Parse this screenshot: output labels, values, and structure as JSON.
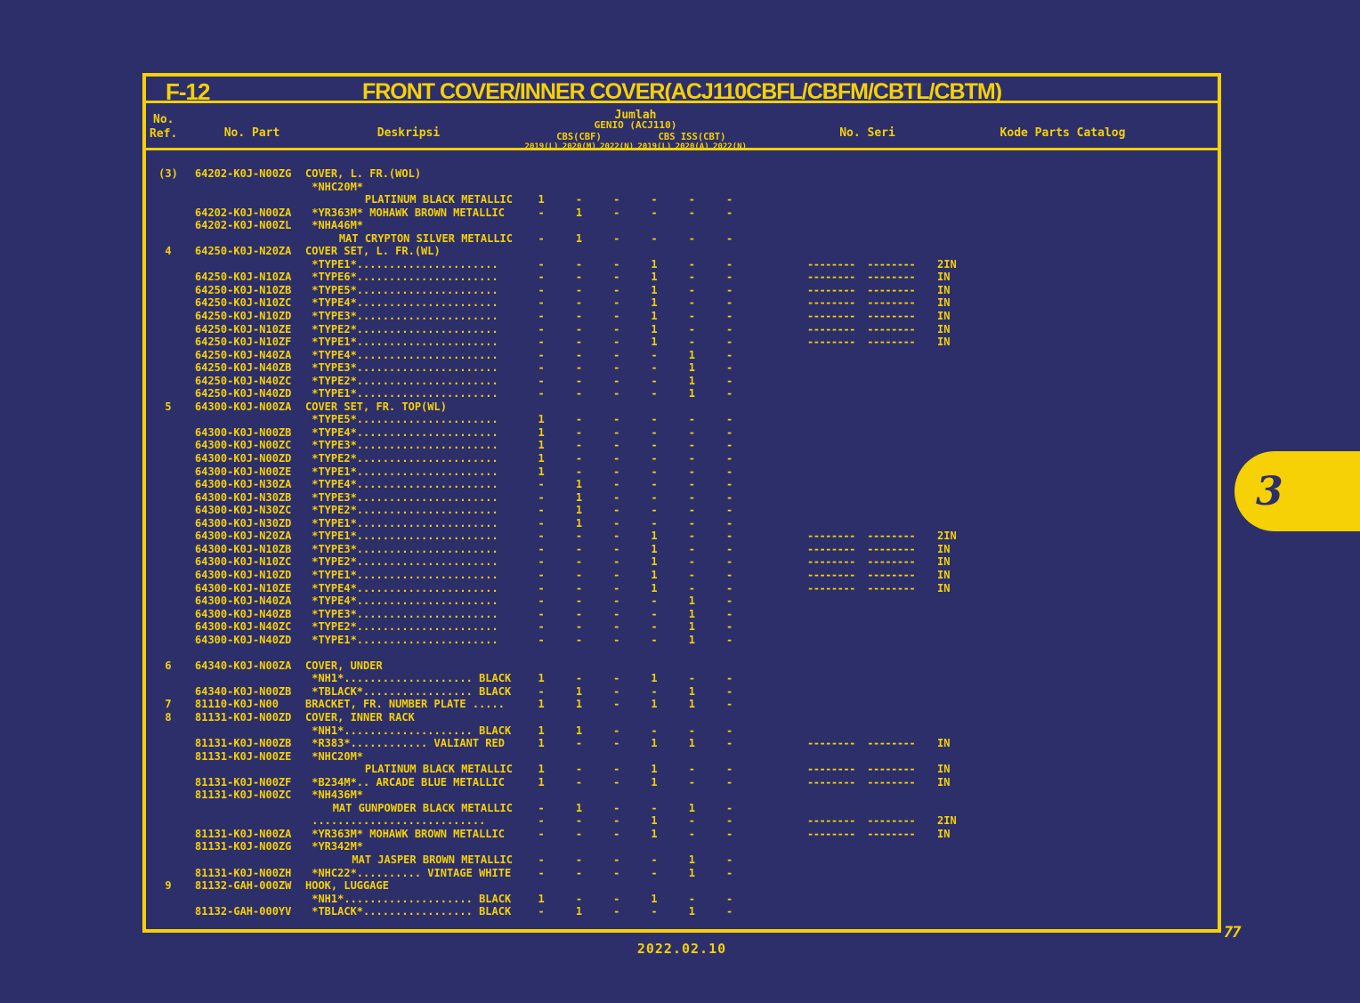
{
  "page": {
    "title_code": "F-12",
    "title": "FRONT COVER/INNER COVER(ACJ110CBFL/CBFM/CBTL/CBTM)",
    "footer_date": "2022.02.10",
    "page_number": "77",
    "side_tab": "3"
  },
  "colors": {
    "background": "#2D2F6B",
    "accent_yellow": "#F5D106"
  },
  "header": {
    "ref_line1": "No.",
    "ref_line2": "Ref.",
    "part": "No. Part",
    "desc": "Deskripsi",
    "qty_group": "Jumlah",
    "qty_model": "GENIO (ACJ110)",
    "qty_sub1": "CBS(CBF)",
    "qty_sub2": "CBS ISS(CBT)",
    "years": [
      "2019(L)",
      "2020(M)",
      "2022(N)",
      "2019(L)",
      "2020(A)",
      "2022(N)"
    ],
    "seri": "No. Seri",
    "code": "Kode Parts Catalog"
  },
  "serial_dashes": "--------  --------",
  "rows": [
    {
      "ref": "(3)",
      "part": "64202-K0J-N00ZG",
      "desc": "COVER, L. FR.(WOL)",
      "right": false,
      "q": [
        "",
        "",
        "",
        "",
        "",
        ""
      ],
      "seri": "",
      "code": ""
    },
    {
      "ref": "",
      "part": "",
      "desc": " *NHC20M*",
      "right": false,
      "q": [
        "",
        "",
        "",
        "",
        "",
        ""
      ],
      "seri": "",
      "code": ""
    },
    {
      "ref": "",
      "part": "",
      "desc": "PLATINUM BLACK METALLIC",
      "right": true,
      "q": [
        "1",
        "-",
        "-",
        "-",
        "-",
        "-"
      ],
      "seri": "",
      "code": ""
    },
    {
      "ref": "",
      "part": "64202-K0J-N00ZA",
      "desc": " *YR363M* MOHAWK BROWN METALLIC",
      "right": false,
      "q": [
        "-",
        "1",
        "-",
        "-",
        "-",
        "-"
      ],
      "seri": "",
      "code": ""
    },
    {
      "ref": "",
      "part": "64202-K0J-N00ZL",
      "desc": " *NHA46M*",
      "right": false,
      "q": [
        "",
        "",
        "",
        "",
        "",
        ""
      ],
      "seri": "",
      "code": ""
    },
    {
      "ref": "",
      "part": "",
      "desc": "MAT CRYPTON SILVER METALLIC",
      "right": true,
      "q": [
        "-",
        "1",
        "-",
        "-",
        "-",
        "-"
      ],
      "seri": "",
      "code": ""
    },
    {
      "ref": "4",
      "part": "64250-K0J-N20ZA",
      "desc": "COVER SET, L. FR.(WL)",
      "right": false,
      "q": [
        "",
        "",
        "",
        "",
        "",
        ""
      ],
      "seri": "",
      "code": ""
    },
    {
      "ref": "",
      "part": "",
      "desc": " *TYPE1*......................",
      "right": false,
      "q": [
        "-",
        "-",
        "-",
        "1",
        "-",
        "-"
      ],
      "seri": "--------  --------",
      "code": "2IN"
    },
    {
      "ref": "",
      "part": "64250-K0J-N10ZA",
      "desc": " *TYPE6*......................",
      "right": false,
      "q": [
        "-",
        "-",
        "-",
        "1",
        "-",
        "-"
      ],
      "seri": "--------  --------",
      "code": "IN"
    },
    {
      "ref": "",
      "part": "64250-K0J-N10ZB",
      "desc": " *TYPE5*......................",
      "right": false,
      "q": [
        "-",
        "-",
        "-",
        "1",
        "-",
        "-"
      ],
      "seri": "--------  --------",
      "code": "IN"
    },
    {
      "ref": "",
      "part": "64250-K0J-N10ZC",
      "desc": " *TYPE4*......................",
      "right": false,
      "q": [
        "-",
        "-",
        "-",
        "1",
        "-",
        "-"
      ],
      "seri": "--------  --------",
      "code": "IN"
    },
    {
      "ref": "",
      "part": "64250-K0J-N10ZD",
      "desc": " *TYPE3*......................",
      "right": false,
      "q": [
        "-",
        "-",
        "-",
        "1",
        "-",
        "-"
      ],
      "seri": "--------  --------",
      "code": "IN"
    },
    {
      "ref": "",
      "part": "64250-K0J-N10ZE",
      "desc": " *TYPE2*......................",
      "right": false,
      "q": [
        "-",
        "-",
        "-",
        "1",
        "-",
        "-"
      ],
      "seri": "--------  --------",
      "code": "IN"
    },
    {
      "ref": "",
      "part": "64250-K0J-N10ZF",
      "desc": " *TYPE1*......................",
      "right": false,
      "q": [
        "-",
        "-",
        "-",
        "1",
        "-",
        "-"
      ],
      "seri": "--------  --------",
      "code": "IN"
    },
    {
      "ref": "",
      "part": "64250-K0J-N40ZA",
      "desc": " *TYPE4*......................",
      "right": false,
      "q": [
        "-",
        "-",
        "-",
        "-",
        "1",
        "-"
      ],
      "seri": "",
      "code": ""
    },
    {
      "ref": "",
      "part": "64250-K0J-N40ZB",
      "desc": " *TYPE3*......................",
      "right": false,
      "q": [
        "-",
        "-",
        "-",
        "-",
        "1",
        "-"
      ],
      "seri": "",
      "code": ""
    },
    {
      "ref": "",
      "part": "64250-K0J-N40ZC",
      "desc": " *TYPE2*......................",
      "right": false,
      "q": [
        "-",
        "-",
        "-",
        "-",
        "1",
        "-"
      ],
      "seri": "",
      "code": ""
    },
    {
      "ref": "",
      "part": "64250-K0J-N40ZD",
      "desc": " *TYPE1*......................",
      "right": false,
      "q": [
        "-",
        "-",
        "-",
        "-",
        "1",
        "-"
      ],
      "seri": "",
      "code": ""
    },
    {
      "ref": "5",
      "part": "64300-K0J-N00ZA",
      "desc": "COVER SET, FR. TOP(WL)",
      "right": false,
      "q": [
        "",
        "",
        "",
        "",
        "",
        ""
      ],
      "seri": "",
      "code": ""
    },
    {
      "ref": "",
      "part": "",
      "desc": " *TYPE5*......................",
      "right": false,
      "q": [
        "1",
        "-",
        "-",
        "-",
        "-",
        "-"
      ],
      "seri": "",
      "code": ""
    },
    {
      "ref": "",
      "part": "64300-K0J-N00ZB",
      "desc": " *TYPE4*......................",
      "right": false,
      "q": [
        "1",
        "-",
        "-",
        "-",
        "-",
        "-"
      ],
      "seri": "",
      "code": ""
    },
    {
      "ref": "",
      "part": "64300-K0J-N00ZC",
      "desc": " *TYPE3*......................",
      "right": false,
      "q": [
        "1",
        "-",
        "-",
        "-",
        "-",
        "-"
      ],
      "seri": "",
      "code": ""
    },
    {
      "ref": "",
      "part": "64300-K0J-N00ZD",
      "desc": " *TYPE2*......................",
      "right": false,
      "q": [
        "1",
        "-",
        "-",
        "-",
        "-",
        "-"
      ],
      "seri": "",
      "code": ""
    },
    {
      "ref": "",
      "part": "64300-K0J-N00ZE",
      "desc": " *TYPE1*......................",
      "right": false,
      "q": [
        "1",
        "-",
        "-",
        "-",
        "-",
        "-"
      ],
      "seri": "",
      "code": ""
    },
    {
      "ref": "",
      "part": "64300-K0J-N30ZA",
      "desc": " *TYPE4*......................",
      "right": false,
      "q": [
        "-",
        "1",
        "-",
        "-",
        "-",
        "-"
      ],
      "seri": "",
      "code": ""
    },
    {
      "ref": "",
      "part": "64300-K0J-N30ZB",
      "desc": " *TYPE3*......................",
      "right": false,
      "q": [
        "-",
        "1",
        "-",
        "-",
        "-",
        "-"
      ],
      "seri": "",
      "code": ""
    },
    {
      "ref": "",
      "part": "64300-K0J-N30ZC",
      "desc": " *TYPE2*......................",
      "right": false,
      "q": [
        "-",
        "1",
        "-",
        "-",
        "-",
        "-"
      ],
      "seri": "",
      "code": ""
    },
    {
      "ref": "",
      "part": "64300-K0J-N30ZD",
      "desc": " *TYPE1*......................",
      "right": false,
      "q": [
        "-",
        "1",
        "-",
        "-",
        "-",
        "-"
      ],
      "seri": "",
      "code": ""
    },
    {
      "ref": "",
      "part": "64300-K0J-N20ZA",
      "desc": " *TYPE1*......................",
      "right": false,
      "q": [
        "-",
        "-",
        "-",
        "1",
        "-",
        "-"
      ],
      "seri": "--------  --------",
      "code": "2IN"
    },
    {
      "ref": "",
      "part": "64300-K0J-N10ZB",
      "desc": " *TYPE3*......................",
      "right": false,
      "q": [
        "-",
        "-",
        "-",
        "1",
        "-",
        "-"
      ],
      "seri": "--------  --------",
      "code": "IN"
    },
    {
      "ref": "",
      "part": "64300-K0J-N10ZC",
      "desc": " *TYPE2*......................",
      "right": false,
      "q": [
        "-",
        "-",
        "-",
        "1",
        "-",
        "-"
      ],
      "seri": "--------  --------",
      "code": "IN"
    },
    {
      "ref": "",
      "part": "64300-K0J-N10ZD",
      "desc": " *TYPE1*......................",
      "right": false,
      "q": [
        "-",
        "-",
        "-",
        "1",
        "-",
        "-"
      ],
      "seri": "--------  --------",
      "code": "IN"
    },
    {
      "ref": "",
      "part": "64300-K0J-N10ZE",
      "desc": " *TYPE4*......................",
      "right": false,
      "q": [
        "-",
        "-",
        "-",
        "1",
        "-",
        "-"
      ],
      "seri": "--------  --------",
      "code": "IN"
    },
    {
      "ref": "",
      "part": "64300-K0J-N40ZA",
      "desc": " *TYPE4*......................",
      "right": false,
      "q": [
        "-",
        "-",
        "-",
        "-",
        "1",
        "-"
      ],
      "seri": "",
      "code": ""
    },
    {
      "ref": "",
      "part": "64300-K0J-N40ZB",
      "desc": " *TYPE3*......................",
      "right": false,
      "q": [
        "-",
        "-",
        "-",
        "-",
        "1",
        "-"
      ],
      "seri": "",
      "code": ""
    },
    {
      "ref": "",
      "part": "64300-K0J-N40ZC",
      "desc": " *TYPE2*......................",
      "right": false,
      "q": [
        "-",
        "-",
        "-",
        "-",
        "1",
        "-"
      ],
      "seri": "",
      "code": ""
    },
    {
      "ref": "",
      "part": "64300-K0J-N40ZD",
      "desc": " *TYPE1*......................",
      "right": false,
      "q": [
        "-",
        "-",
        "-",
        "-",
        "1",
        "-"
      ],
      "seri": "",
      "code": ""
    },
    {
      "ref": "",
      "part": "",
      "desc": "",
      "right": false,
      "q": [
        "",
        "",
        "",
        "",
        "",
        ""
      ],
      "seri": "",
      "code": ""
    },
    {
      "ref": "6",
      "part": "64340-K0J-N00ZA",
      "desc": "COVER, UNDER",
      "right": false,
      "q": [
        "",
        "",
        "",
        "",
        "",
        ""
      ],
      "seri": "",
      "code": ""
    },
    {
      "ref": "",
      "part": "",
      "desc": " *NH1*.................... BLACK",
      "right": false,
      "q": [
        "1",
        "-",
        "-",
        "1",
        "-",
        "-"
      ],
      "seri": "",
      "code": ""
    },
    {
      "ref": "",
      "part": "64340-K0J-N00ZB",
      "desc": " *TBLACK*................. BLACK",
      "right": false,
      "q": [
        "-",
        "1",
        "-",
        "-",
        "1",
        "-"
      ],
      "seri": "",
      "code": ""
    },
    {
      "ref": "7",
      "part": "81110-K0J-N00",
      "desc": "BRACKET, FR. NUMBER PLATE .....",
      "right": false,
      "q": [
        "1",
        "1",
        "-",
        "1",
        "1",
        "-"
      ],
      "seri": "",
      "code": ""
    },
    {
      "ref": "8",
      "part": "81131-K0J-N00ZD",
      "desc": "COVER, INNER RACK",
      "right": false,
      "q": [
        "",
        "",
        "",
        "",
        "",
        ""
      ],
      "seri": "",
      "code": ""
    },
    {
      "ref": "",
      "part": "",
      "desc": " *NH1*.................... BLACK",
      "right": false,
      "q": [
        "1",
        "1",
        "-",
        "-",
        "-",
        "-"
      ],
      "seri": "",
      "code": ""
    },
    {
      "ref": "",
      "part": "81131-K0J-N00ZB",
      "desc": " *R383*............ VALIANT RED",
      "right": false,
      "q": [
        "1",
        "-",
        "-",
        "1",
        "1",
        "-"
      ],
      "seri": "--------  --------",
      "code": "IN"
    },
    {
      "ref": "",
      "part": "81131-K0J-N00ZE",
      "desc": " *NHC20M*",
      "right": false,
      "q": [
        "",
        "",
        "",
        "",
        "",
        ""
      ],
      "seri": "",
      "code": ""
    },
    {
      "ref": "",
      "part": "",
      "desc": "PLATINUM BLACK METALLIC",
      "right": true,
      "q": [
        "1",
        "-",
        "-",
        "1",
        "-",
        "-"
      ],
      "seri": "--------  --------",
      "code": "IN"
    },
    {
      "ref": "",
      "part": "81131-K0J-N00ZF",
      "desc": " *B234M*.. ARCADE BLUE METALLIC",
      "right": false,
      "q": [
        "1",
        "-",
        "-",
        "1",
        "-",
        "-"
      ],
      "seri": "--------  --------",
      "code": "IN"
    },
    {
      "ref": "",
      "part": "81131-K0J-N00ZC",
      "desc": " *NH436M*",
      "right": false,
      "q": [
        "",
        "",
        "",
        "",
        "",
        ""
      ],
      "seri": "",
      "code": ""
    },
    {
      "ref": "",
      "part": "",
      "desc": "MAT GUNPOWDER BLACK METALLIC",
      "right": true,
      "q": [
        "-",
        "1",
        "-",
        "-",
        "1",
        "-"
      ],
      "seri": "",
      "code": ""
    },
    {
      "ref": "",
      "part": "",
      "desc": " ...........................",
      "right": false,
      "q": [
        "-",
        "-",
        "-",
        "1",
        "-",
        "-"
      ],
      "seri": "--------  --------",
      "code": "2IN"
    },
    {
      "ref": "",
      "part": "81131-K0J-N00ZA",
      "desc": " *YR363M* MOHAWK BROWN METALLIC",
      "right": false,
      "q": [
        "-",
        "-",
        "-",
        "1",
        "-",
        "-"
      ],
      "seri": "--------  --------",
      "code": "IN"
    },
    {
      "ref": "",
      "part": "81131-K0J-N00ZG",
      "desc": " *YR342M*",
      "right": false,
      "q": [
        "",
        "",
        "",
        "",
        "",
        ""
      ],
      "seri": "",
      "code": ""
    },
    {
      "ref": "",
      "part": "",
      "desc": "MAT JASPER BROWN METALLIC",
      "right": true,
      "q": [
        "-",
        "-",
        "-",
        "-",
        "1",
        "-"
      ],
      "seri": "",
      "code": ""
    },
    {
      "ref": "",
      "part": "81131-K0J-N00ZH",
      "desc": " *NHC22*.......... VINTAGE WHITE",
      "right": false,
      "q": [
        "-",
        "-",
        "-",
        "-",
        "1",
        "-"
      ],
      "seri": "",
      "code": ""
    },
    {
      "ref": "9",
      "part": "81132-GAH-000ZW",
      "desc": "HOOK, LUGGAGE",
      "right": false,
      "q": [
        "",
        "",
        "",
        "",
        "",
        ""
      ],
      "seri": "",
      "code": ""
    },
    {
      "ref": "",
      "part": "",
      "desc": " *NH1*.................... BLACK",
      "right": false,
      "q": [
        "1",
        "-",
        "-",
        "1",
        "-",
        "-"
      ],
      "seri": "",
      "code": ""
    },
    {
      "ref": "",
      "part": "81132-GAH-000YV",
      "desc": " *TBLACK*................. BLACK",
      "right": false,
      "q": [
        "-",
        "1",
        "-",
        "-",
        "1",
        "-"
      ],
      "seri": "",
      "code": ""
    }
  ]
}
